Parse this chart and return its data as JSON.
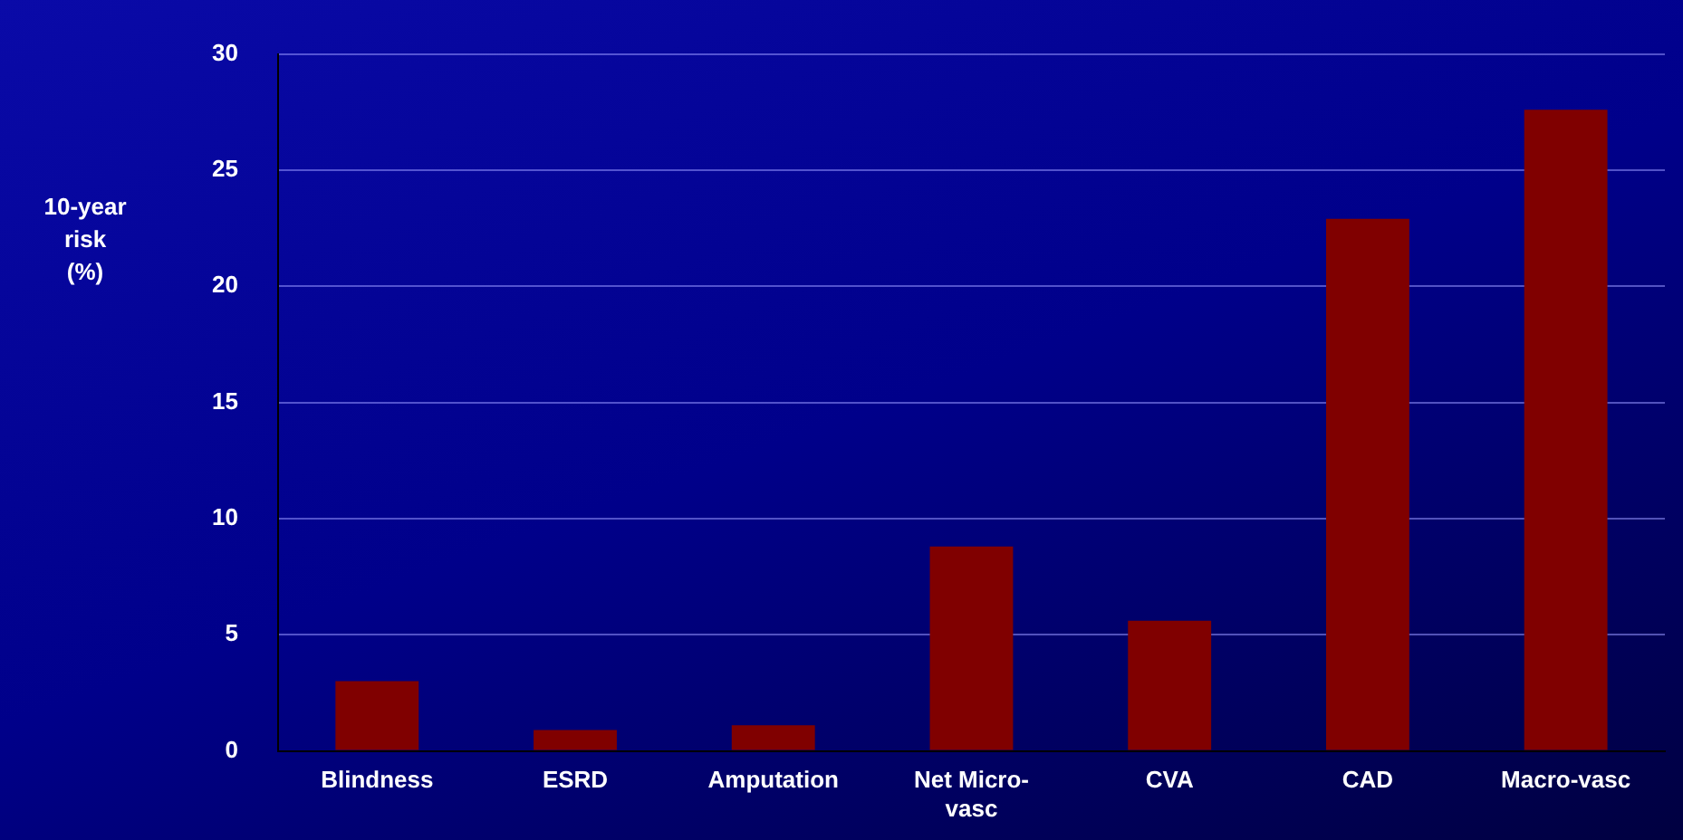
{
  "chart_data": {
    "type": "bar",
    "ylabel": "10-year risk (%)",
    "categories": [
      "Blindness",
      "ESRD",
      "Amputation",
      "Net Micro-vasc",
      "CVA",
      "CAD",
      "Macro-vasc"
    ],
    "values": [
      3.0,
      0.9,
      1.1,
      8.8,
      5.6,
      22.9,
      27.6
    ],
    "color": "#800000",
    "ylim": [
      0,
      30
    ],
    "yticks": [
      0,
      5,
      10,
      15,
      20,
      25,
      30
    ],
    "grid": "y",
    "legend": false
  }
}
